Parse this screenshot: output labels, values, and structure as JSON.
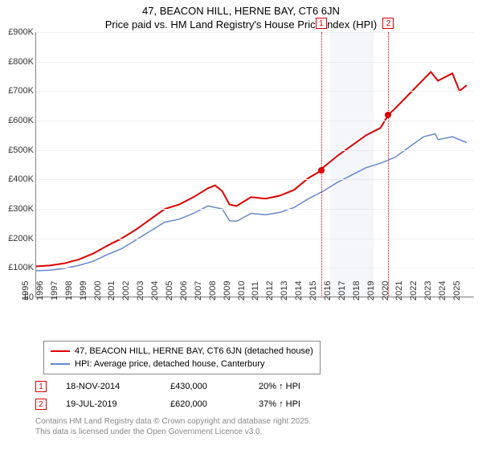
{
  "title": "47, BEACON HILL, HERNE BAY, CT6 6JN",
  "subtitle": "Price paid vs. HM Land Registry's House Price Index (HPI)",
  "chart": {
    "type": "line",
    "x_domain": [
      1995,
      2025.5
    ],
    "y_domain": [
      0,
      900000
    ],
    "y_ticks": [
      0,
      100000,
      200000,
      300000,
      400000,
      500000,
      600000,
      700000,
      800000,
      900000
    ],
    "y_tick_labels": [
      "£0",
      "£100K",
      "£200K",
      "£300K",
      "£400K",
      "£500K",
      "£600K",
      "£700K",
      "£800K",
      "£900K"
    ],
    "x_ticks": [
      1995,
      1996,
      1997,
      1998,
      1999,
      2000,
      2001,
      2002,
      2003,
      2004,
      2005,
      2006,
      2007,
      2008,
      2009,
      2010,
      2011,
      2012,
      2013,
      2014,
      2015,
      2016,
      2017,
      2018,
      2019,
      2020,
      2021,
      2022,
      2023,
      2024,
      2025
    ],
    "grid_color": "#f0f0f0",
    "axis_color": "#888888",
    "background_color": "#ffffff",
    "label_fontsize": 11,
    "shade_ranges": [
      {
        "x0": 2015.5,
        "x1": 2018.5
      }
    ],
    "series": [
      {
        "name": "address",
        "color": "#dd0000",
        "line_width": 2,
        "legend_label": "47, BEACON HILL, HERNE BAY, CT6 6JN (detached house)",
        "data": [
          [
            1995,
            105000
          ],
          [
            1996,
            108000
          ],
          [
            1997,
            115000
          ],
          [
            1998,
            128000
          ],
          [
            1999,
            148000
          ],
          [
            2000,
            175000
          ],
          [
            2001,
            200000
          ],
          [
            2002,
            230000
          ],
          [
            2003,
            265000
          ],
          [
            2004,
            300000
          ],
          [
            2005,
            315000
          ],
          [
            2006,
            340000
          ],
          [
            2007,
            370000
          ],
          [
            2007.5,
            380000
          ],
          [
            2008,
            360000
          ],
          [
            2008.5,
            315000
          ],
          [
            2009,
            310000
          ],
          [
            2010,
            340000
          ],
          [
            2011,
            335000
          ],
          [
            2012,
            345000
          ],
          [
            2013,
            365000
          ],
          [
            2014,
            405000
          ],
          [
            2014.88,
            430000
          ],
          [
            2015,
            440000
          ],
          [
            2016,
            480000
          ],
          [
            2017,
            515000
          ],
          [
            2018,
            550000
          ],
          [
            2019,
            575000
          ],
          [
            2019.55,
            620000
          ],
          [
            2020,
            640000
          ],
          [
            2021,
            690000
          ],
          [
            2022,
            740000
          ],
          [
            2022.5,
            765000
          ],
          [
            2023,
            735000
          ],
          [
            2024,
            760000
          ],
          [
            2024.5,
            700000
          ],
          [
            2025,
            720000
          ]
        ]
      },
      {
        "name": "hpi",
        "color": "#6688cc",
        "line_width": 1.5,
        "legend_label": "HPI: Average price, detached house, Canterbury",
        "data": [
          [
            1995,
            90000
          ],
          [
            1996,
            92000
          ],
          [
            1997,
            98000
          ],
          [
            1998,
            108000
          ],
          [
            1999,
            122000
          ],
          [
            2000,
            145000
          ],
          [
            2001,
            165000
          ],
          [
            2002,
            195000
          ],
          [
            2003,
            225000
          ],
          [
            2004,
            255000
          ],
          [
            2005,
            265000
          ],
          [
            2006,
            285000
          ],
          [
            2007,
            310000
          ],
          [
            2008,
            300000
          ],
          [
            2008.5,
            260000
          ],
          [
            2009,
            258000
          ],
          [
            2010,
            285000
          ],
          [
            2011,
            280000
          ],
          [
            2012,
            288000
          ],
          [
            2013,
            305000
          ],
          [
            2014,
            335000
          ],
          [
            2015,
            360000
          ],
          [
            2016,
            390000
          ],
          [
            2017,
            415000
          ],
          [
            2018,
            440000
          ],
          [
            2019,
            455000
          ],
          [
            2020,
            475000
          ],
          [
            2021,
            510000
          ],
          [
            2022,
            545000
          ],
          [
            2022.8,
            555000
          ],
          [
            2023,
            535000
          ],
          [
            2024,
            545000
          ],
          [
            2025,
            525000
          ]
        ]
      }
    ],
    "markers": [
      {
        "n": "1",
        "x": 2014.88,
        "y": 430000,
        "color": "#dd0000",
        "date": "18-NOV-2014",
        "price": "£430,000",
        "diff": "20% ↑ HPI"
      },
      {
        "n": "2",
        "x": 2019.55,
        "y": 620000,
        "color": "#dd0000",
        "date": "19-JUL-2019",
        "price": "£620,000",
        "diff": "37% ↑ HPI"
      }
    ]
  },
  "footer_line1": "Contains HM Land Registry data © Crown copyright and database right 2025.",
  "footer_line2": "This data is licensed under the Open Government Licence v3.0."
}
